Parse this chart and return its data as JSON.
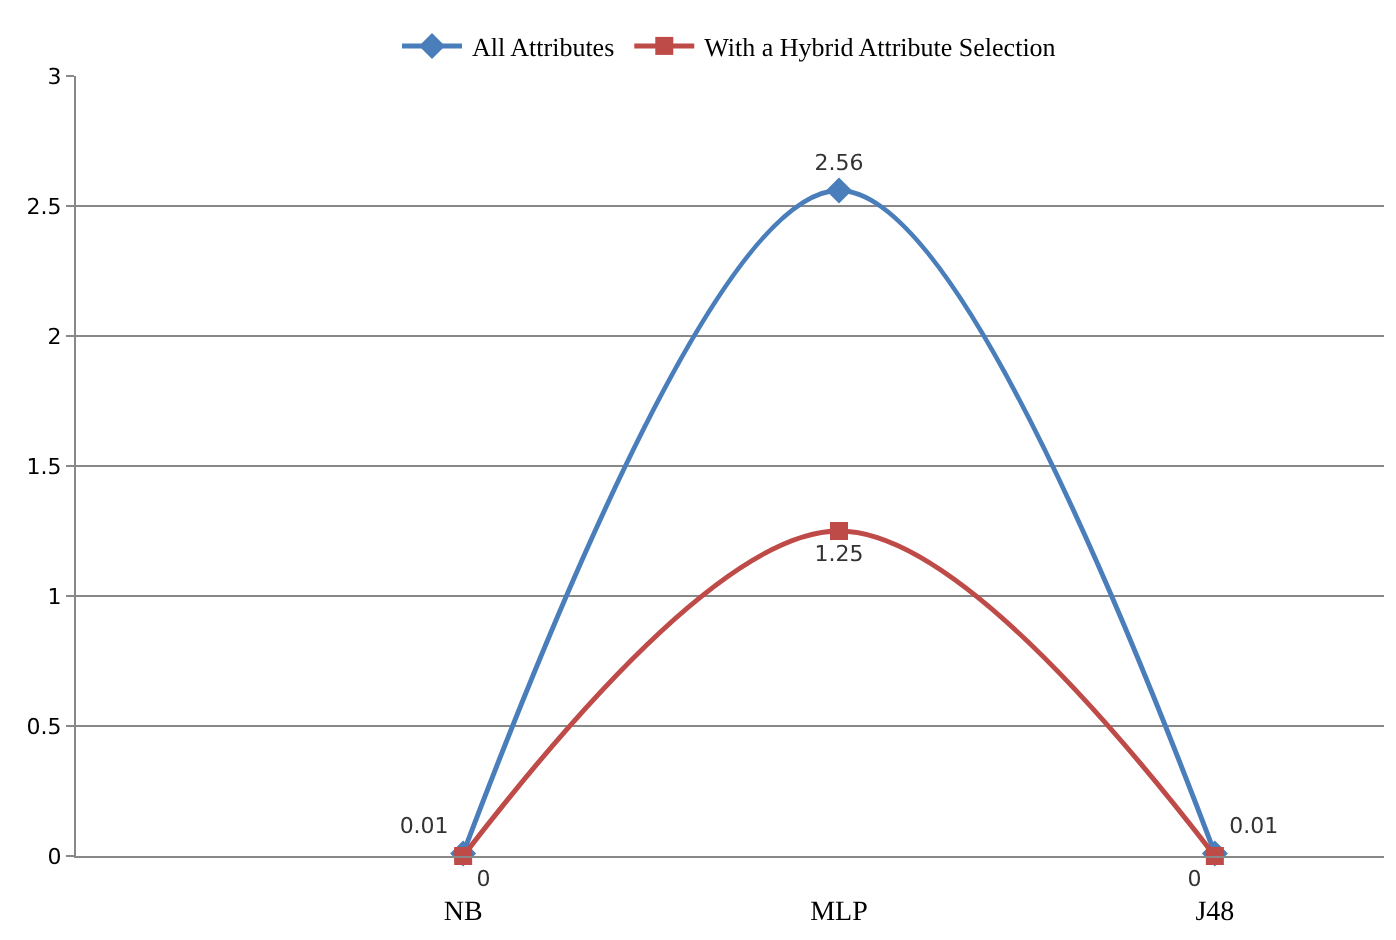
{
  "chart_data": {
    "type": "line",
    "categories": [
      "NB",
      "MLP",
      "J48"
    ],
    "series": [
      {
        "name": "All Attributes",
        "color": "#4a7ebb",
        "marker": "diamond",
        "values": [
          0.01,
          2.56,
          0.01
        ]
      },
      {
        "name": "With a Hybrid Attribute Selection",
        "color": "#be4b48",
        "marker": "square",
        "values": [
          0,
          1.25,
          0
        ]
      }
    ],
    "ylim": [
      0,
      3
    ],
    "yticks": [
      0,
      0.5,
      1,
      1.5,
      2,
      2.5,
      3
    ],
    "grid": "y",
    "legend": "top",
    "data_labels": true
  }
}
